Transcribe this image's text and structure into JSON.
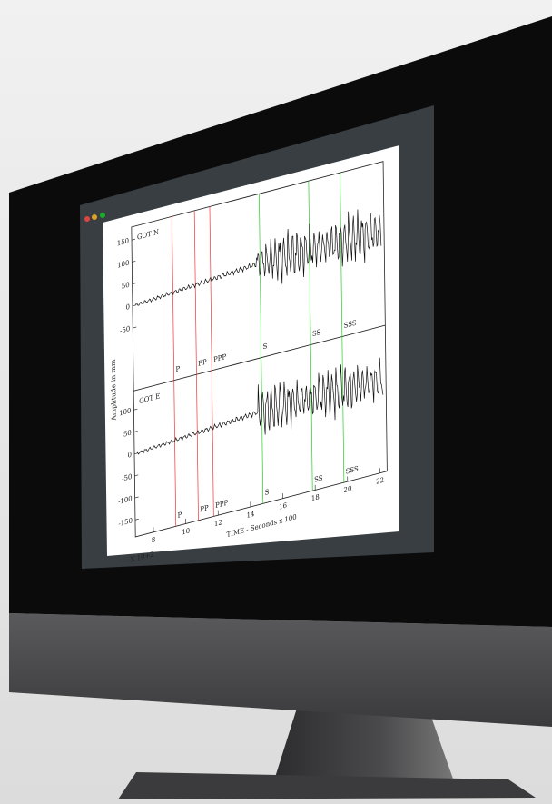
{
  "screen": {
    "plot": {
      "y_axis_label": "Amplitude in mm",
      "x_axis_label": "TIME - Seconds x 100",
      "x_multiplier": "X 10+2",
      "x_ticks": [
        "8",
        "10",
        "12",
        "14",
        "16",
        "18",
        "20",
        "22"
      ],
      "panels": [
        {
          "label": "GOT  N",
          "y_ticks": [
            "150",
            "100",
            "50",
            "0",
            "-50"
          ],
          "phases": [
            "P",
            "PP",
            "PPP",
            "S",
            "SS",
            "SSS"
          ]
        },
        {
          "label": "GOT  E",
          "y_ticks": [
            "100",
            "50",
            "0",
            "-50",
            "-100",
            "-150"
          ],
          "phases": [
            "P",
            "PP",
            "PPP",
            "S",
            "SS",
            "SSS"
          ]
        }
      ]
    }
  }
}
